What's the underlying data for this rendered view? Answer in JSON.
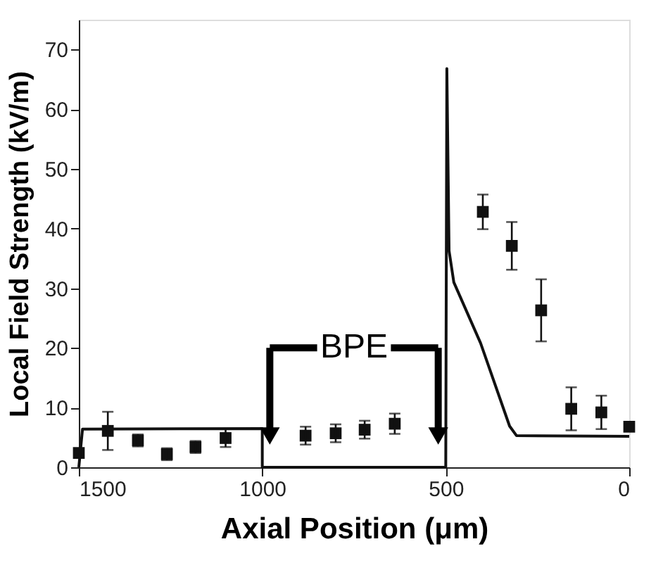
{
  "chart_data": {
    "type": "scatter",
    "xlabel": "Axial Position (μm)",
    "ylabel": "Local Field Strength (kV/m)",
    "xlim": [
      1500,
      0
    ],
    "xticks": [
      1500,
      1000,
      500,
      0
    ],
    "ylim": [
      0,
      75
    ],
    "yticks": [
      0,
      10,
      20,
      30,
      40,
      50,
      60,
      70
    ],
    "grid": false,
    "marker": "square",
    "series": [
      {
        "color": "#111111",
        "x": [
          1500,
          1421,
          1339,
          1260,
          1182,
          1100,
          882,
          800,
          721,
          639,
          399,
          320,
          240,
          158,
          76,
          0
        ],
        "values": [
          2.4,
          6.1,
          4.5,
          2.2,
          3.4,
          4.9,
          5.3,
          5.7,
          6.3,
          7.3,
          42.8,
          37.1,
          26.3,
          9.8,
          9.2,
          6.8
        ],
        "errors": [
          null,
          3.2,
          1,
          1,
          1,
          1.5,
          1.5,
          1.5,
          1.5,
          1.7,
          2.9,
          4,
          5.2,
          3.6,
          2.8,
          null
        ]
      },
      {
        "type": "line",
        "color": "#111111",
        "marker": "none",
        "x": [
          1500,
          1490,
          1000,
          1000,
          500,
          500,
          497,
          491,
          478,
          405,
          326,
          307,
          0
        ],
        "values": [
          0,
          6.4,
          6.5,
          0,
          0,
          0,
          66.8,
          36.3,
          31,
          20.8,
          6.9,
          5.3,
          5.2
        ]
      }
    ],
    "annotations": [
      "BPE"
    ]
  }
}
